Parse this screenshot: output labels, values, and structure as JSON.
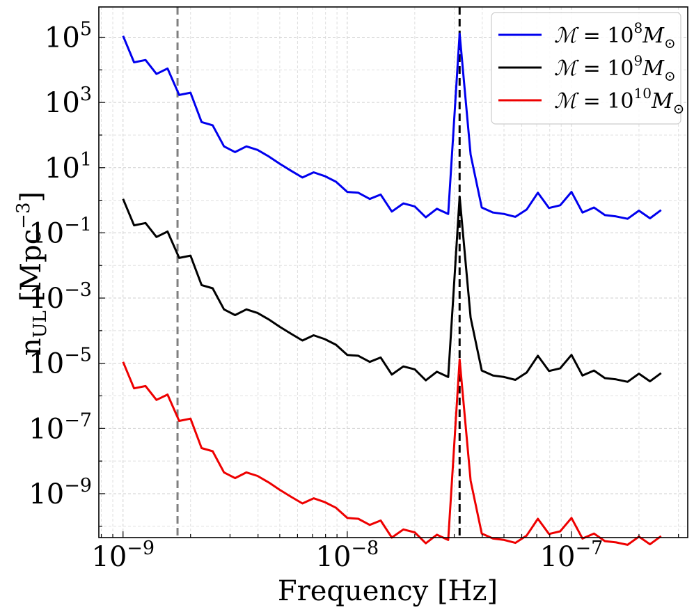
{
  "chart_data": {
    "type": "line",
    "xscale": "log",
    "yscale": "log",
    "xlabel": "Frequency [Hz]",
    "ylabel": "n_UL [Mpc^-3]",
    "ylabel_parts": {
      "main": "n",
      "sub": "UL",
      "unit_open": " [Mpc",
      "unit_exp": "−3",
      "unit_close": "]"
    },
    "xlim": [
      7.8e-10,
      3.3e-07
    ],
    "ylim": [
      4.5e-11,
      850000.0
    ],
    "grid": true,
    "legend_position": "top-right",
    "x_ticks": [
      {
        "value": 1e-09,
        "base": "10",
        "exp": "−9"
      },
      {
        "value": 1e-08,
        "base": "10",
        "exp": "−8"
      },
      {
        "value": 1e-07,
        "base": "10",
        "exp": "−7"
      }
    ],
    "y_ticks": [
      {
        "value": 100000.0,
        "base": "10",
        "exp": "5"
      },
      {
        "value": 1000.0,
        "base": "10",
        "exp": "3"
      },
      {
        "value": 10.0,
        "base": "10",
        "exp": "1"
      },
      {
        "value": 0.1,
        "base": "10",
        "exp": "−1"
      },
      {
        "value": 0.001,
        "base": "10",
        "exp": "−3"
      },
      {
        "value": 1e-05,
        "base": "10",
        "exp": "−5"
      },
      {
        "value": 1e-07,
        "base": "10",
        "exp": "−7"
      },
      {
        "value": 1e-09,
        "base": "10",
        "exp": "−9"
      }
    ],
    "vlines": [
      {
        "x": 1.75e-09,
        "color": "#7f7f7f",
        "style": "dashed"
      },
      {
        "x": 3.17e-08,
        "color": "#000000",
        "style": "dashed"
      }
    ],
    "x": [
      1e-09,
      1.12e-09,
      1.26e-09,
      1.41e-09,
      1.58e-09,
      1.78e-09,
      2e-09,
      2.24e-09,
      2.51e-09,
      2.82e-09,
      3.16e-09,
      3.55e-09,
      3.98e-09,
      4.47e-09,
      5.01e-09,
      5.62e-09,
      6.31e-09,
      7.08e-09,
      7.94e-09,
      8.91e-09,
      1e-08,
      1.12e-08,
      1.26e-08,
      1.41e-08,
      1.58e-08,
      1.78e-08,
      2e-08,
      2.24e-08,
      2.51e-08,
      2.82e-08,
      3.17e-08,
      3.55e-08,
      3.98e-08,
      4.47e-08,
      5.01e-08,
      5.62e-08,
      6.31e-08,
      7.08e-08,
      7.94e-08,
      8.91e-08,
      1e-07,
      1.12e-07,
      1.26e-07,
      1.41e-07,
      1.58e-07,
      1.78e-07,
      2e-07,
      2.24e-07,
      2.51e-07
    ],
    "base_profile": [
      110000,
      17000,
      20000,
      7500,
      11000,
      1700,
      2000,
      250,
      200,
      45,
      30,
      45,
      35,
      22,
      13,
      8,
      5,
      7.2,
      5.5,
      3.7,
      1.8,
      1.7,
      1.1,
      1.5,
      0.45,
      0.8,
      0.65,
      0.3,
      0.55,
      0.38,
      130000,
      25,
      0.6,
      0.42,
      0.38,
      0.31,
      0.52,
      1.7,
      0.58,
      0.7,
      1.8,
      0.42,
      0.6,
      0.35,
      0.32,
      0.27,
      0.48,
      0.28,
      0.5
    ],
    "series": [
      {
        "name": "M = 10^8 M☉",
        "label_base": "10",
        "label_exp": "8",
        "color": "#0000ee",
        "scale": 1
      },
      {
        "name": "M = 10^9 M☉",
        "label_base": "10",
        "label_exp": "9",
        "color": "#000000",
        "scale": 1e-05
      },
      {
        "name": "M = 10^10 M☉",
        "label_base": "10",
        "label_exp": "10",
        "color": "#ee0000",
        "scale": 1e-10
      }
    ],
    "legend": {
      "prefix": "ℳ = ",
      "suffix_var": "M",
      "suffix_sub": "⊙"
    }
  }
}
